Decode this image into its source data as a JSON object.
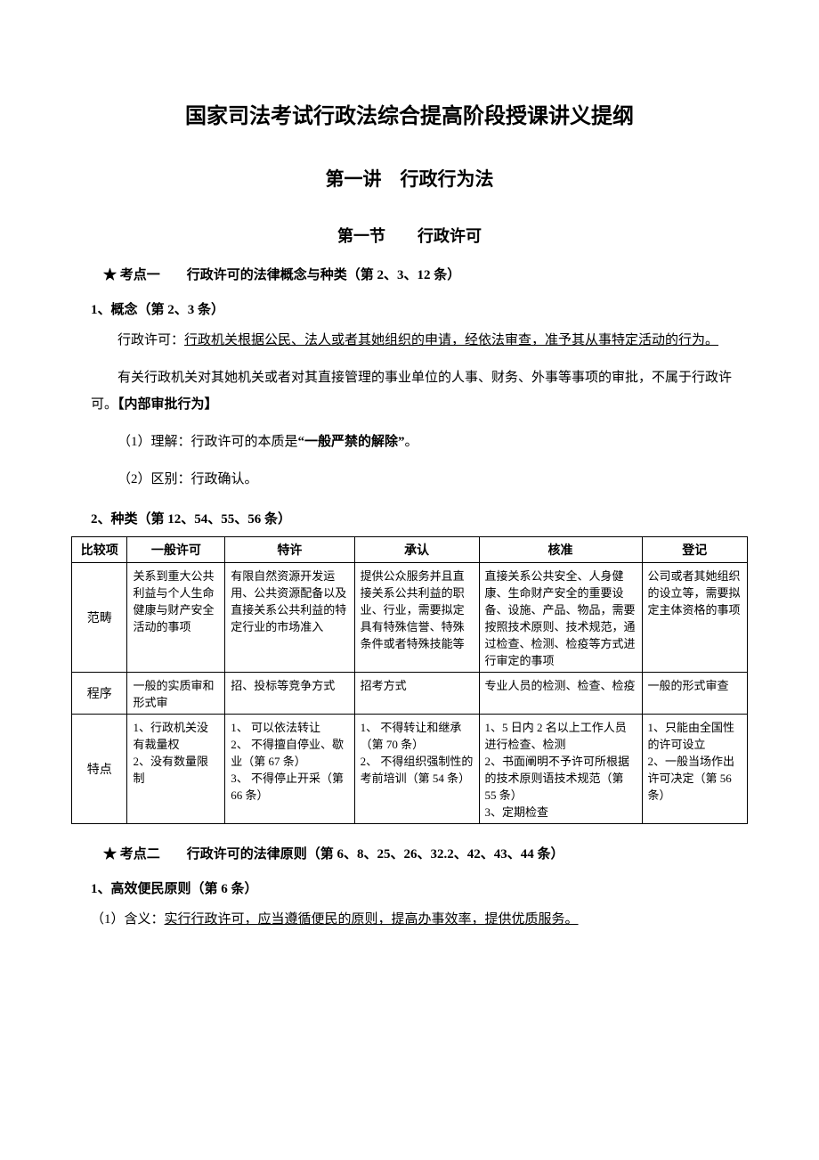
{
  "title_main": "国家司法考试行政法综合提高阶段授课讲义提纲",
  "chapter": "第一讲　行政行为法",
  "section": "第一节　　行政许可",
  "point1_heading": "考点一　　行政许可的法律概念与种类（第 2、3、12 条）",
  "p1_sub1": "1、概念（第 2、3 条）",
  "p1_def_prefix": "行政许可：",
  "p1_def_underlined": "行政机关根据公民、法人或者其她组织的申请，经依法审查，准予其从事特定活动的行为。",
  "p1_para2_a": "有关行政机关对其她机关或者对其直接管理的事业单位的人事、财务、外事等事项的审批，不属于行政许可。",
  "p1_para2_b": "【内部审批行为】",
  "p1_item1_a": "（1）理解：行政许可的本质是",
  "p1_item1_b": "“一般严禁的解除”",
  "p1_item1_c": "。",
  "p1_item2": "（2）区别：行政确认。",
  "p1_sub2": "2、种类（第 12、54、55、56 条）",
  "table": {
    "headers": [
      "比较项",
      "一般许可",
      "特许",
      "承认",
      "核准",
      "登记"
    ],
    "rows": [
      {
        "label": "范畴",
        "cells": [
          "关系到重大公共利益与个人生命健康与财产安全活动的事项",
          "有限自然资源开发运用、公共资源配备以及直接关系公共利益的特定行业的市场准入",
          "提供公众服务并且直接关系公共利益的职业、行业，需要拟定具有特殊信誉、特殊条件或者特殊技能等",
          "直接关系公共安全、人身健康、生命财产安全的重要设备、设施、产品、物品，需要按照技术原则、技术规范，通过检查、检测、检疫等方式进行审定的事项",
          "公司或者其她组织的设立等，需要拟定主体资格的事项"
        ]
      },
      {
        "label": "程序",
        "cells": [
          "一般的实质审和形式审",
          "招、投标等竞争方式",
          "招考方式",
          "专业人员的检测、检查、检疫",
          "一般的形式审查"
        ]
      },
      {
        "label": "特点",
        "cells": [
          "1、行政机关没有裁量权\n2、没有数量限制",
          "1、 可以依法转让\n2、 不得擅自停业、歇业（第 67 条）\n3、 不得停止开采（第 66 条）",
          "1、 不得转让和继承（第 70 条）\n2、 不得组织强制性的考前培训（第 54 条）",
          "1、5 日内 2 名以上工作人员进行检查、检测\n2、书面阐明不予许可所根据的技术原则语技术规范（第 55 条）\n3、定期检查",
          "1、只能由全国性的许可设立\n2、一般当场作出许可决定（第 56 条）"
        ]
      }
    ]
  },
  "point2_heading": "考点二　　行政许可的法律原则（第 6、8、25、26、32.2、42、43、44 条）",
  "p2_sub1": "1、高效便民原则（第 6 条）",
  "p2_item1_a": "（1）含义：",
  "p2_item1_b": "实行行政许可，应当遵循便民的原则，提高办事效率，提供优质服务。"
}
